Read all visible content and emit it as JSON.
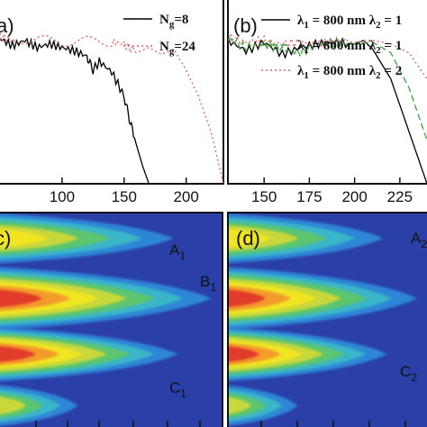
{
  "chart_data": [
    {
      "panel": "a",
      "type": "line",
      "panel_label": "a)",
      "xlim": [
        50,
        230
      ],
      "xticks": [
        "100",
        "150",
        "200"
      ],
      "xtick_values": [
        100,
        150,
        200
      ],
      "ylim": [
        -8,
        2
      ],
      "series": [
        {
          "name": "N_g=8",
          "legend_main": "N",
          "legend_sub": "g",
          "legend_tail": "=8",
          "color": "#000000",
          "dash": "solid",
          "x": [
            50,
            60,
            70,
            80,
            90,
            100,
            110,
            120,
            125,
            130,
            140,
            150,
            155,
            160,
            165,
            170
          ],
          "y": [
            0.3,
            -0.1,
            0.2,
            -0.2,
            0.0,
            -0.2,
            -0.4,
            -0.7,
            -1.5,
            -1.0,
            -1.6,
            -3.0,
            -4.5,
            -5.8,
            -7.0,
            -8.0
          ]
        },
        {
          "name": "N_g=24",
          "legend_main": "N",
          "legend_sub": "g",
          "legend_tail": "=24",
          "color": "#e06060",
          "dash": "dotted",
          "x": [
            50,
            60,
            80,
            100,
            120,
            140,
            150,
            160,
            170,
            180,
            190,
            200,
            210,
            220,
            230
          ],
          "y": [
            0.4,
            0.2,
            0.3,
            0.1,
            0.2,
            0.1,
            0.0,
            -0.5,
            -0.2,
            -0.6,
            -0.3,
            -1.5,
            -3.0,
            -5.0,
            -8.0
          ]
        }
      ]
    },
    {
      "panel": "b",
      "type": "line",
      "panel_label": "(b)",
      "xlim": [
        130,
        240
      ],
      "xticks": [
        "150",
        "175",
        "200",
        "225"
      ],
      "xtick_values": [
        150,
        175,
        200,
        225
      ],
      "ylim": [
        -8,
        2
      ],
      "series": [
        {
          "name": "λ1 = 800 nm λ2 = 1",
          "legend_main": "λ",
          "legend_sub": "1",
          "legend_tail": " = 800 nm λ",
          "legend_sub2": "2",
          "legend_end": " = 1",
          "color": "#000000",
          "dash": "solid",
          "x": [
            130,
            140,
            150,
            160,
            170,
            180,
            190,
            200,
            205,
            210,
            220,
            230,
            240
          ],
          "y": [
            0.2,
            -0.4,
            0.1,
            -0.6,
            -0.2,
            0.0,
            0.1,
            0.0,
            0.2,
            -0.3,
            -2.0,
            -5.0,
            -8.0
          ]
        },
        {
          "name": "λ1 = 800 nm λ2 = 1",
          "legend_main": "λ",
          "legend_sub": "1",
          "legend_tail": " = 800 nm λ",
          "legend_sub2": "2",
          "legend_end": " = 1",
          "color": "#3aa33a",
          "dash": "dashed",
          "x": [
            130,
            140,
            150,
            160,
            170,
            180,
            190,
            200,
            210,
            220,
            230,
            240
          ],
          "y": [
            0.3,
            -0.2,
            0.0,
            -0.3,
            -0.5,
            0.0,
            0.1,
            0.0,
            0.1,
            -0.5,
            -2.5,
            -5.5
          ]
        },
        {
          "name": "λ1 = 800 nm λ2 = 2",
          "legend_main": "λ",
          "legend_sub": "1",
          "legend_tail": " = 800 nm λ",
          "legend_sub2": "2",
          "legend_end": " = 2",
          "color": "#e06060",
          "dash": "dotted",
          "x": [
            130,
            140,
            150,
            160,
            170,
            180,
            190,
            200,
            210,
            220,
            230,
            240
          ],
          "y": [
            0.4,
            0.1,
            0.2,
            0.0,
            0.1,
            0.0,
            0.2,
            0.1,
            0.2,
            0.0,
            -0.5,
            -2.0
          ]
        }
      ]
    },
    {
      "panel": "c",
      "type": "heatmap",
      "panel_label": "c)",
      "colormap": [
        "#2b3fa8",
        "#2e86d6",
        "#3ab6c8",
        "#5cc56e",
        "#c8d83a",
        "#f1e524",
        "#f39a2a",
        "#e23b2a"
      ],
      "annotations": [
        {
          "main": "A",
          "sub": "1"
        },
        {
          "main": "B",
          "sub": "1"
        },
        {
          "main": "C",
          "sub": "1"
        }
      ]
    },
    {
      "panel": "d",
      "type": "heatmap",
      "panel_label": "(d)",
      "colormap": [
        "#2b3fa8",
        "#2e86d6",
        "#3ab6c8",
        "#5cc56e",
        "#c8d83a",
        "#f1e524",
        "#f39a2a",
        "#e23b2a"
      ],
      "annotations": [
        {
          "main": "A",
          "sub": "2"
        },
        {
          "main": "C",
          "sub": "2"
        }
      ]
    }
  ]
}
